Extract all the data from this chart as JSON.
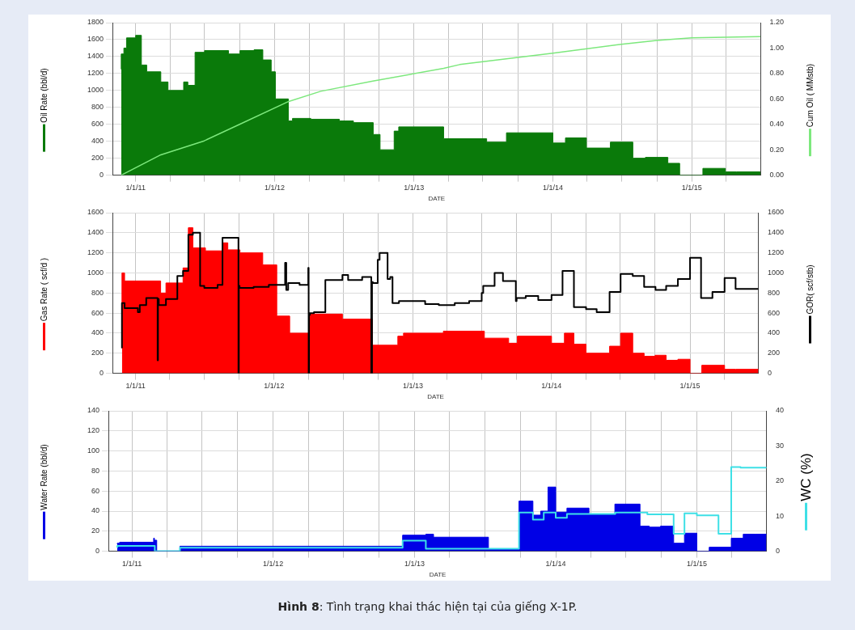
{
  "chart_data": [
    {
      "type": "area",
      "xlabel": "DATE",
      "ylabel": "Oil Rate (bbl/d)",
      "y2label": "Cum Oil ( MMstb)",
      "grid": true,
      "xlim": [
        "2010-11-01",
        "2015-07-01"
      ],
      "xticks": [
        {
          "value": "2011-01-01",
          "label": "1/1/11"
        },
        {
          "value": "2011-04-01",
          "label": null
        },
        {
          "value": "2011-07-01",
          "label": null
        },
        {
          "value": "2011-10-01",
          "label": null
        },
        {
          "value": "2012-01-01",
          "label": "1/1/12"
        },
        {
          "value": "2012-04-01",
          "label": null
        },
        {
          "value": "2012-07-01",
          "label": null
        },
        {
          "value": "2012-10-01",
          "label": null
        },
        {
          "value": "2013-01-01",
          "label": "1/1/13"
        },
        {
          "value": "2013-04-01",
          "label": null
        },
        {
          "value": "2013-07-01",
          "label": null
        },
        {
          "value": "2013-10-01",
          "label": null
        },
        {
          "value": "2014-01-01",
          "label": "1/1/14"
        },
        {
          "value": "2014-04-01",
          "label": null
        },
        {
          "value": "2014-07-01",
          "label": null
        },
        {
          "value": "2014-10-01",
          "label": null
        },
        {
          "value": "2015-01-01",
          "label": "1/1/15"
        },
        {
          "value": "2015-04-01",
          "label": null
        }
      ],
      "ylim": [
        0,
        1800
      ],
      "yticks": [
        0,
        200,
        400,
        600,
        800,
        1000,
        1200,
        1400,
        1600,
        1800
      ],
      "y2lim": [
        0,
        1.2
      ],
      "y2ticks": [
        {
          "value": 0,
          "label": "0.00"
        },
        {
          "value": 0.2,
          "label": "0.20"
        },
        {
          "value": 0.4,
          "label": "0.40"
        },
        {
          "value": 0.6,
          "label": "0.60"
        },
        {
          "value": 0.8,
          "label": "0.80"
        },
        {
          "value": 1,
          "label": "1.00"
        },
        {
          "value": 1.2,
          "label": "1.20"
        }
      ],
      "series": [
        {
          "color": "#0a7a0a",
          "x": [
            "2010-11-24",
            "2010-12-01",
            "2010-12-08",
            "2011-01-01",
            "2011-01-16",
            "2011-01-30",
            "2011-03-08",
            "2011-03-27",
            "2011-05-07",
            "2011-05-18",
            "2011-06-06",
            "2011-07-01",
            "2011-09-02",
            "2011-10-02",
            "2011-11-08",
            "2011-12-01",
            "2011-12-23",
            "2012-01-03",
            "2012-02-06",
            "2012-02-17",
            "2012-04-05",
            "2012-06-19",
            "2012-07-26",
            "2012-09-16",
            "2012-10-04",
            "2012-11-10",
            "2012-11-22",
            "2013-03-20",
            "2013-07-11",
            "2013-09-01",
            "2014-01-01",
            "2014-02-03",
            "2014-03-30",
            "2014-06-01",
            "2014-07-30",
            "2014-09-01",
            "2014-10-30",
            "2014-11-30",
            "2015-01-30",
            "2015-03-30",
            "2015-04-28",
            "2015-06-30"
          ],
          "values": [
            1250,
            1430,
            1500,
            1620,
            1650,
            1300,
            1220,
            1100,
            1000,
            1100,
            1060,
            1450,
            1470,
            1430,
            1470,
            1480,
            1360,
            1220,
            900,
            640,
            670,
            660,
            640,
            620,
            480,
            300,
            520,
            570,
            430,
            390,
            500,
            380,
            440,
            320,
            390,
            200,
            210,
            140,
            0,
            80,
            40,
            40
          ]
        },
        {
          "type": "line",
          "axis": "y2",
          "color": "#7de87d",
          "x": [
            "2010-11-24",
            "2011-03-08",
            "2011-06-30",
            "2011-10-01",
            "2012-02-07",
            "2012-05-01",
            "2012-09-15",
            "2013-03-20",
            "2013-05-01",
            "2014-01-01",
            "2014-06-30",
            "2014-10-01",
            "2015-01-01",
            "2015-06-30"
          ],
          "values": [
            0,
            0.16,
            0.27,
            0.4,
            0.58,
            0.66,
            0.74,
            0.84,
            0.87,
            0.96,
            1.03,
            1.06,
            1.08,
            1.09
          ]
        }
      ]
    },
    {
      "type": "area",
      "xlabel": "DATE",
      "ylabel": "Gas Rate ( scf/d )",
      "y2label": "GOR( scf/stb)",
      "grid": true,
      "xlim": [
        "2010-11-01",
        "2015-07-01"
      ],
      "xticks": [
        {
          "value": "2011-01-01",
          "label": "1/1/11"
        },
        {
          "value": "2011-04-01",
          "label": null
        },
        {
          "value": "2011-07-01",
          "label": null
        },
        {
          "value": "2011-10-01",
          "label": null
        },
        {
          "value": "2012-01-01",
          "label": "1/1/12"
        },
        {
          "value": "2012-04-01",
          "label": null
        },
        {
          "value": "2012-07-01",
          "label": null
        },
        {
          "value": "2012-10-01",
          "label": null
        },
        {
          "value": "2013-01-01",
          "label": "1/1/13"
        },
        {
          "value": "2013-04-01",
          "label": null
        },
        {
          "value": "2013-07-01",
          "label": null
        },
        {
          "value": "2013-10-01",
          "label": null
        },
        {
          "value": "2014-01-01",
          "label": "1/1/14"
        },
        {
          "value": "2014-04-01",
          "label": null
        },
        {
          "value": "2014-07-01",
          "label": null
        },
        {
          "value": "2014-10-01",
          "label": null
        },
        {
          "value": "2015-01-01",
          "label": "1/1/15"
        },
        {
          "value": "2015-04-01",
          "label": null
        }
      ],
      "ylim": [
        0,
        1600
      ],
      "yticks": [
        0,
        200,
        400,
        600,
        800,
        1000,
        1200,
        1400,
        1600
      ],
      "y2lim": [
        0,
        1600
      ],
      "y2ticks": [
        0,
        200,
        400,
        600,
        800,
        1000,
        1200,
        1400,
        1600
      ],
      "series": [
        {
          "color": "#ff0000",
          "x": [
            "2010-11-26",
            "2010-12-03",
            "2011-03-08",
            "2011-03-22",
            "2011-05-06",
            "2011-05-20",
            "2011-06-01",
            "2011-07-04",
            "2011-08-18",
            "2011-09-01",
            "2011-10-03",
            "2011-12-02",
            "2012-01-08",
            "2012-02-11",
            "2012-04-04",
            "2012-06-29",
            "2012-09-16",
            "2012-11-22",
            "2012-12-07",
            "2013-03-22",
            "2013-07-08",
            "2013-09-10",
            "2013-10-03",
            "2014-01-01",
            "2014-02-04",
            "2014-03-01",
            "2014-04-02",
            "2014-06-03",
            "2014-07-02",
            "2014-08-03",
            "2014-09-02",
            "2014-10-01",
            "2014-10-30",
            "2014-11-30",
            "2015-01-01",
            "2015-02-01",
            "2015-04-02",
            "2015-05-01",
            "2015-06-30"
          ],
          "values": [
            250,
            1000,
            920,
            800,
            900,
            1050,
            1450,
            1250,
            1220,
            1300,
            1230,
            1200,
            1080,
            570,
            400,
            590,
            540,
            280,
            370,
            400,
            420,
            350,
            300,
            370,
            300,
            400,
            290,
            200,
            270,
            400,
            200,
            170,
            180,
            130,
            140,
            0,
            80,
            40,
            40
          ]
        },
        {
          "type": "step",
          "axis": "y2",
          "color": "#000000",
          "x": [
            "2010-11-26",
            "2010-12-03",
            "2011-01-07",
            "2011-01-12",
            "2011-01-29",
            "2011-02-28",
            "2011-03-01",
            "2011-03-03",
            "2011-03-22",
            "2011-04-21",
            "2011-05-06",
            "2011-05-20",
            "2011-06-01",
            "2011-06-20",
            "2011-07-01",
            "2011-08-05",
            "2011-08-18",
            "2011-09-29",
            "2011-09-30",
            "2011-10-02",
            "2011-11-08",
            "2011-12-18",
            "2012-01-30",
            "2012-02-02",
            "2012-02-07",
            "2012-03-08",
            "2012-03-31",
            "2012-04-01",
            "2012-04-02",
            "2012-04-04",
            "2012-04-15",
            "2012-05-15",
            "2012-06-29",
            "2012-07-14",
            "2012-08-20",
            "2012-09-13",
            "2012-09-15",
            "2012-09-17",
            "2012-09-30",
            "2012-10-05",
            "2012-10-26",
            "2012-11-02",
            "2012-11-08",
            "2012-11-25",
            "2013-02-02",
            "2013-03-10",
            "2013-04-21",
            "2013-05-29",
            "2013-07-01",
            "2013-07-05",
            "2013-08-04",
            "2013-08-26",
            "2013-09-29",
            "2013-10-01",
            "2013-10-25",
            "2013-11-27",
            "2014-01-01",
            "2014-01-30",
            "2014-03-01",
            "2014-04-02",
            "2014-04-30",
            "2014-06-03",
            "2014-07-02",
            "2014-08-03",
            "2014-09-02",
            "2014-10-02",
            "2014-10-30",
            "2014-11-30",
            "2015-01-01",
            "2015-01-30",
            "2015-03-01",
            "2015-04-02",
            "2015-05-01",
            "2015-06-01",
            "2015-06-30"
          ],
          "values": [
            250,
            700,
            650,
            610,
            680,
            750,
            130,
            740,
            680,
            740,
            970,
            1020,
            1380,
            1400,
            870,
            850,
            880,
            1350,
            0,
            870,
            850,
            860,
            880,
            1100,
            830,
            900,
            880,
            1050,
            0,
            580,
            600,
            610,
            930,
            980,
            930,
            960,
            0,
            910,
            900,
            1130,
            1200,
            940,
            960,
            700,
            720,
            690,
            680,
            700,
            720,
            800,
            870,
            1000,
            920,
            720,
            750,
            770,
            730,
            780,
            1020,
            660,
            640,
            610,
            810,
            990,
            970,
            860,
            830,
            870,
            940,
            1150,
            750,
            810,
            950,
            840,
            840
          ]
        }
      ]
    },
    {
      "type": "area",
      "xlabel": "DATE",
      "ylabel": "Water Rate (bbl/d)",
      "y2label": "WC (%)",
      "grid": true,
      "xlim": [
        "2010-11-01",
        "2015-07-01"
      ],
      "xticks": [
        {
          "value": "2011-01-01",
          "label": "1/1/11"
        },
        {
          "value": "2011-04-01",
          "label": null
        },
        {
          "value": "2011-07-01",
          "label": null
        },
        {
          "value": "2011-10-01",
          "label": null
        },
        {
          "value": "2012-01-01",
          "label": "1/1/12"
        },
        {
          "value": "2012-04-01",
          "label": null
        },
        {
          "value": "2012-07-01",
          "label": null
        },
        {
          "value": "2012-10-01",
          "label": null
        },
        {
          "value": "2013-01-01",
          "label": "1/1/13"
        },
        {
          "value": "2013-04-01",
          "label": null
        },
        {
          "value": "2013-07-01",
          "label": null
        },
        {
          "value": "2013-10-01",
          "label": null
        },
        {
          "value": "2014-01-01",
          "label": "1/1/14"
        },
        {
          "value": "2014-04-01",
          "label": null
        },
        {
          "value": "2014-07-01",
          "label": null
        },
        {
          "value": "2014-10-01",
          "label": null
        },
        {
          "value": "2015-01-01",
          "label": "1/1/15"
        },
        {
          "value": "2015-04-01",
          "label": null
        }
      ],
      "ylim": [
        0,
        140
      ],
      "yticks": [
        0,
        20,
        40,
        60,
        80,
        100,
        120,
        140
      ],
      "y2lim": [
        0,
        40
      ],
      "y2ticks": [
        0,
        10,
        20,
        30,
        40
      ],
      "annotations": [
        "Hình 8: Tình trạng khai thác hiện tại của giếng X-1P."
      ],
      "series": [
        {
          "color": "#0000e6",
          "x": [
            "2010-11-24",
            "2010-11-30",
            "2011-02-26",
            "2011-02-28",
            "2011-03-06",
            "2011-05-05",
            "2012-12-01",
            "2013-01-30",
            "2013-02-19",
            "2013-07-11",
            "2013-09-28",
            "2013-11-03",
            "2013-11-23",
            "2013-12-12",
            "2014-01-01",
            "2014-01-30",
            "2014-03-28",
            "2014-06-03",
            "2014-08-07",
            "2014-08-31",
            "2014-09-29",
            "2014-11-02",
            "2014-11-30",
            "2015-01-01",
            "2015-02-02",
            "2015-03-31",
            "2015-05-01",
            "2015-05-31",
            "2015-06-30"
          ],
          "values": [
            7,
            8,
            9,
            13,
            11,
            0,
            5,
            16,
            17,
            14,
            2,
            50,
            36,
            40,
            64,
            39,
            43,
            37,
            47,
            25,
            24,
            25,
            8,
            18,
            0,
            4,
            13,
            17,
            17
          ]
        },
        {
          "type": "step",
          "axis": "y2",
          "color": "#3ee0e6",
          "x": [
            "2010-11-24",
            "2011-03-01",
            "2011-05-05",
            "2012-12-01",
            "2013-01-30",
            "2013-09-28",
            "2013-11-03",
            "2013-12-01",
            "2014-01-01",
            "2014-01-30",
            "2014-06-04",
            "2014-08-26",
            "2014-11-02",
            "2014-11-30",
            "2015-01-01",
            "2015-02-26",
            "2015-03-31",
            "2015-04-24",
            "2015-05-31",
            "2015-06-30"
          ],
          "values": [
            1,
            1.5,
            0,
            1,
            3,
            0.7,
            11,
            9,
            11,
            9.5,
            10.6,
            11,
            10.5,
            5,
            10.8,
            10.2,
            5,
            24,
            23.8,
            23.8
          ]
        }
      ]
    }
  ]
}
